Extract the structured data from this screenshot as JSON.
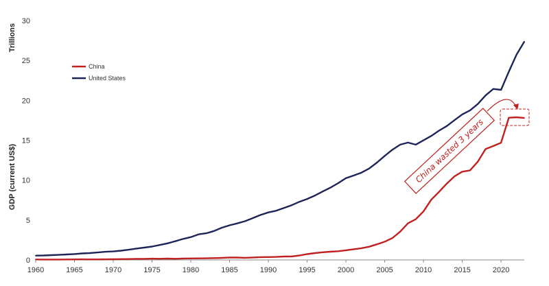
{
  "chart_data": {
    "type": "line",
    "ylabel": "GDP (current US$)",
    "yunit_label": "Trillions",
    "xlim": [
      1960,
      2023
    ],
    "ylim": [
      0,
      30
    ],
    "xticks": [
      1960,
      1965,
      1970,
      1975,
      1980,
      1985,
      1990,
      1995,
      2000,
      2005,
      2010,
      2015,
      2020
    ],
    "yticks": [
      0,
      5,
      10,
      15,
      20,
      25,
      30
    ],
    "grid": false,
    "legend_position": "top-left",
    "series": [
      {
        "name": "China",
        "color": "#c0201f",
        "x": [
          1960,
          1961,
          1962,
          1963,
          1964,
          1965,
          1966,
          1967,
          1968,
          1969,
          1970,
          1971,
          1972,
          1973,
          1974,
          1975,
          1976,
          1977,
          1978,
          1979,
          1980,
          1981,
          1982,
          1983,
          1984,
          1985,
          1986,
          1987,
          1988,
          1989,
          1990,
          1991,
          1992,
          1993,
          1994,
          1995,
          1996,
          1997,
          1998,
          1999,
          2000,
          2001,
          2002,
          2003,
          2004,
          2005,
          2006,
          2007,
          2008,
          2009,
          2010,
          2011,
          2012,
          2013,
          2014,
          2015,
          2016,
          2017,
          2018,
          2019,
          2020,
          2021,
          2022,
          2023
        ],
        "values": [
          0.06,
          0.05,
          0.05,
          0.05,
          0.06,
          0.07,
          0.08,
          0.07,
          0.07,
          0.08,
          0.09,
          0.1,
          0.11,
          0.14,
          0.14,
          0.16,
          0.15,
          0.17,
          0.15,
          0.18,
          0.19,
          0.2,
          0.21,
          0.23,
          0.26,
          0.31,
          0.3,
          0.27,
          0.31,
          0.35,
          0.36,
          0.38,
          0.43,
          0.44,
          0.56,
          0.73,
          0.86,
          0.96,
          1.03,
          1.09,
          1.21,
          1.34,
          1.47,
          1.66,
          1.96,
          2.29,
          2.75,
          3.55,
          4.59,
          5.1,
          6.09,
          7.55,
          8.53,
          9.57,
          10.48,
          11.06,
          11.23,
          12.31,
          13.89,
          14.28,
          14.69,
          17.82,
          17.88,
          17.79
        ]
      },
      {
        "name": "United States",
        "color": "#1d2458",
        "x": [
          1960,
          1961,
          1962,
          1963,
          1964,
          1965,
          1966,
          1967,
          1968,
          1969,
          1970,
          1971,
          1972,
          1973,
          1974,
          1975,
          1976,
          1977,
          1978,
          1979,
          1980,
          1981,
          1982,
          1983,
          1984,
          1985,
          1986,
          1987,
          1988,
          1989,
          1990,
          1991,
          1992,
          1993,
          1994,
          1995,
          1996,
          1997,
          1998,
          1999,
          2000,
          2001,
          2002,
          2003,
          2004,
          2005,
          2006,
          2007,
          2008,
          2009,
          2010,
          2011,
          2012,
          2013,
          2014,
          2015,
          2016,
          2017,
          2018,
          2019,
          2020,
          2021,
          2022,
          2023
        ],
        "values": [
          0.54,
          0.56,
          0.6,
          0.64,
          0.69,
          0.74,
          0.82,
          0.86,
          0.94,
          1.02,
          1.07,
          1.16,
          1.28,
          1.43,
          1.55,
          1.68,
          1.87,
          2.08,
          2.35,
          2.63,
          2.86,
          3.21,
          3.34,
          3.63,
          4.04,
          4.34,
          4.58,
          4.86,
          5.24,
          5.64,
          5.96,
          6.16,
          6.52,
          6.86,
          7.29,
          7.64,
          8.07,
          8.58,
          9.06,
          9.63,
          10.25,
          10.58,
          10.94,
          11.46,
          12.21,
          13.04,
          13.82,
          14.45,
          14.71,
          14.45,
          14.99,
          15.54,
          16.2,
          16.78,
          17.52,
          18.24,
          18.75,
          19.54,
          20.61,
          21.43,
          21.32,
          23.59,
          25.74,
          27.36
        ]
      }
    ],
    "annotation": {
      "text": "China wasted 3 years",
      "color": "#c0201f"
    }
  }
}
